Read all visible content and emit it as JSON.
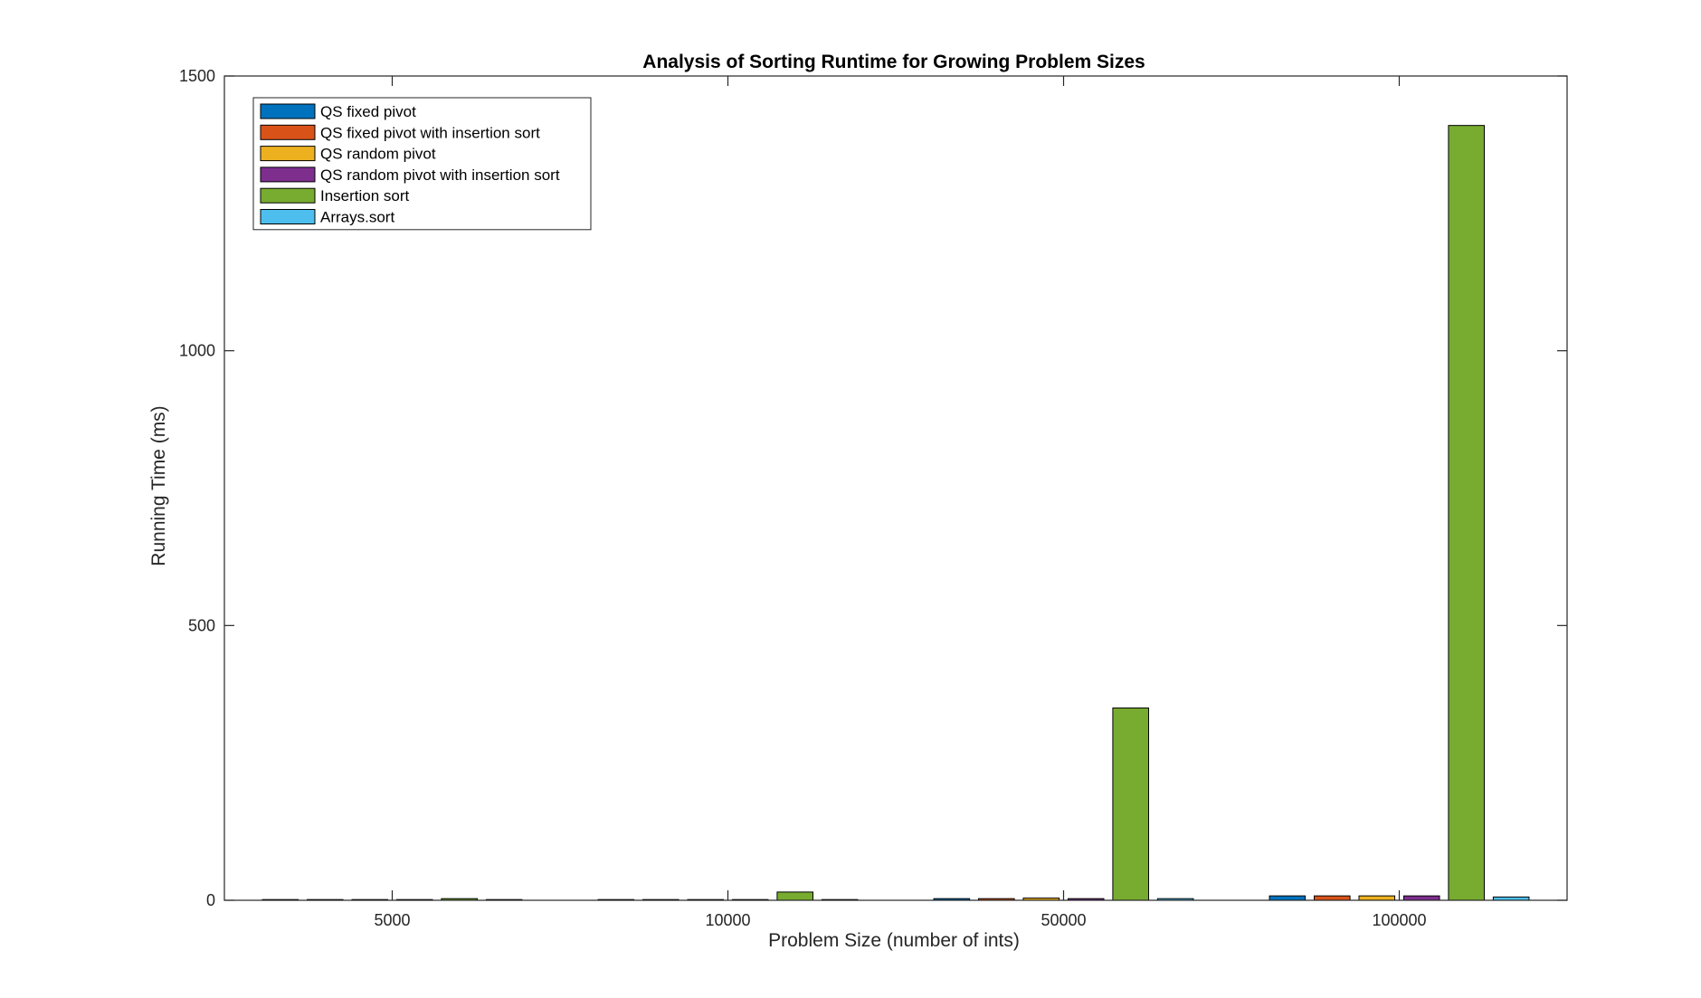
{
  "chart_data": {
    "type": "bar",
    "title": "Analysis of Sorting Runtime for Growing Problem Sizes",
    "xlabel": "Problem Size (number of ints)",
    "ylabel": "Running Time (ms)",
    "categories": [
      "5000",
      "10000",
      "50000",
      "100000"
    ],
    "ylim": [
      0,
      1500
    ],
    "yticks": [
      0,
      500,
      1000,
      1500
    ],
    "grid": false,
    "legend_position": "top-left",
    "series": [
      {
        "name": "QS fixed pivot",
        "color": "#0072BD",
        "values": [
          0.3,
          0.6,
          3,
          8
        ]
      },
      {
        "name": "QS fixed pivot with insertion sort",
        "color": "#D95319",
        "values": [
          0.3,
          0.5,
          3,
          8
        ]
      },
      {
        "name": "QS random pivot",
        "color": "#EDB120",
        "values": [
          0.4,
          0.7,
          4,
          8
        ]
      },
      {
        "name": "QS random pivot with insertion sort",
        "color": "#7E2F8E",
        "values": [
          0.3,
          0.6,
          3,
          8
        ]
      },
      {
        "name": "Insertion sort",
        "color": "#77AC30",
        "values": [
          3,
          15,
          350,
          1410
        ]
      },
      {
        "name": "Arrays.sort",
        "color": "#4DBEEE",
        "values": [
          0.2,
          0.4,
          3,
          6
        ]
      }
    ]
  }
}
